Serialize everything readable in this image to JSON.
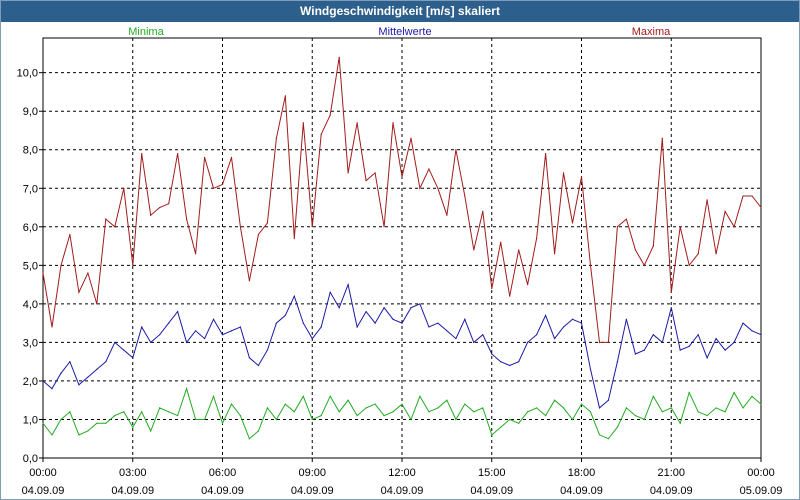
{
  "window": {
    "title": "Windgeschwindigkeit [m/s] skaliert"
  },
  "colors": {
    "minima": "#22aa22",
    "mean": "#1a1aa6",
    "maxima": "#a21c1c",
    "titlebar": "#2d5f8d",
    "grid": "#000000"
  },
  "chart_data": {
    "type": "line",
    "title": "Windgeschwindigkeit [m/s] skaliert",
    "xlabel": "",
    "ylabel": "",
    "ylim": [
      0,
      10.9
    ],
    "xlim": [
      0,
      24
    ],
    "x_unit": "hours since 04.09.09 00:00",
    "y_ticks": [
      "0,0",
      "1,0",
      "2,0",
      "3,0",
      "4,0",
      "5,0",
      "6,0",
      "7,0",
      "8,0",
      "9,0",
      "10,0"
    ],
    "x_ticks": [
      {
        "time": "00:00",
        "date": "04.09.09"
      },
      {
        "time": "03:00",
        "date": "04.09.09"
      },
      {
        "time": "06:00",
        "date": "04.09.09"
      },
      {
        "time": "09:00",
        "date": "04.09.09"
      },
      {
        "time": "12:00",
        "date": "04.09.09"
      },
      {
        "time": "15:00",
        "date": "04.09.09"
      },
      {
        "time": "18:00",
        "date": "04.09.09"
      },
      {
        "time": "21:00",
        "date": "04.09.09"
      },
      {
        "time": "00:00",
        "date": "05.09.09"
      }
    ],
    "grid": true,
    "legend": [
      "Minima",
      "Mittelwerte",
      "Maxima"
    ],
    "series": [
      {
        "name": "Minima",
        "color": "#22aa22",
        "x": [
          0,
          0.3,
          0.6,
          0.9,
          1.2,
          1.5,
          1.8,
          2.1,
          2.4,
          2.7,
          3.0,
          3.3,
          3.6,
          3.9,
          4.2,
          4.5,
          4.8,
          5.1,
          5.4,
          5.7,
          6.0,
          6.3,
          6.6,
          6.9,
          7.2,
          7.5,
          7.8,
          8.1,
          8.4,
          8.7,
          9.0,
          9.3,
          9.6,
          9.9,
          10.2,
          10.5,
          10.8,
          11.1,
          11.4,
          11.7,
          12.0,
          12.3,
          12.6,
          12.9,
          13.2,
          13.5,
          13.8,
          14.1,
          14.4,
          14.7,
          15.0,
          15.3,
          15.6,
          15.9,
          16.2,
          16.5,
          16.8,
          17.1,
          17.4,
          17.7,
          18.0,
          18.3,
          18.6,
          18.9,
          19.2,
          19.5,
          19.8,
          20.1,
          20.4,
          20.7,
          21.0,
          21.3,
          21.6,
          21.9,
          22.2,
          22.5,
          22.8,
          23.1,
          23.4,
          23.7,
          24.0
        ],
        "y": [
          0.9,
          0.6,
          1.0,
          1.2,
          0.6,
          0.7,
          0.9,
          0.9,
          1.1,
          1.2,
          0.8,
          1.2,
          0.7,
          1.3,
          1.2,
          1.1,
          1.8,
          1.0,
          1.0,
          1.6,
          0.9,
          1.4,
          1.1,
          0.5,
          0.7,
          1.3,
          1.0,
          1.4,
          1.2,
          1.6,
          1.0,
          1.1,
          1.6,
          1.2,
          1.5,
          1.1,
          1.3,
          1.4,
          1.1,
          1.2,
          1.4,
          1.0,
          1.6,
          1.2,
          1.3,
          1.5,
          1.0,
          1.4,
          1.2,
          1.3,
          0.6,
          0.8,
          1.0,
          0.9,
          1.2,
          1.3,
          1.1,
          1.5,
          1.3,
          1.0,
          1.4,
          1.2,
          0.6,
          0.5,
          0.8,
          1.3,
          1.1,
          1.0,
          1.6,
          1.2,
          1.3,
          0.9,
          1.7,
          1.2,
          1.1,
          1.3,
          1.2,
          1.7,
          1.3,
          1.6,
          1.4
        ]
      },
      {
        "name": "Mittelwerte",
        "color": "#1a1aa6",
        "x": [
          0,
          0.3,
          0.6,
          0.9,
          1.2,
          1.5,
          1.8,
          2.1,
          2.4,
          2.7,
          3.0,
          3.3,
          3.6,
          3.9,
          4.2,
          4.5,
          4.8,
          5.1,
          5.4,
          5.7,
          6.0,
          6.3,
          6.6,
          6.9,
          7.2,
          7.5,
          7.8,
          8.1,
          8.4,
          8.7,
          9.0,
          9.3,
          9.6,
          9.9,
          10.2,
          10.5,
          10.8,
          11.1,
          11.4,
          11.7,
          12.0,
          12.3,
          12.6,
          12.9,
          13.2,
          13.5,
          13.8,
          14.1,
          14.4,
          14.7,
          15.0,
          15.3,
          15.6,
          15.9,
          16.2,
          16.5,
          16.8,
          17.1,
          17.4,
          17.7,
          18.0,
          18.3,
          18.6,
          18.9,
          19.2,
          19.5,
          19.8,
          20.1,
          20.4,
          20.7,
          21.0,
          21.3,
          21.6,
          21.9,
          22.2,
          22.5,
          22.8,
          23.1,
          23.4,
          23.7,
          24.0
        ],
        "y": [
          2.0,
          1.8,
          2.2,
          2.5,
          1.9,
          2.1,
          2.3,
          2.5,
          3.0,
          2.8,
          2.6,
          3.4,
          3.0,
          3.2,
          3.5,
          3.8,
          3.0,
          3.3,
          3.1,
          3.6,
          3.2,
          3.3,
          3.4,
          2.6,
          2.4,
          2.8,
          3.5,
          3.7,
          4.2,
          3.5,
          3.1,
          3.4,
          4.3,
          3.9,
          4.5,
          3.4,
          3.8,
          3.5,
          3.9,
          3.6,
          3.5,
          3.9,
          4.0,
          3.4,
          3.5,
          3.3,
          3.1,
          3.6,
          3.0,
          3.2,
          2.7,
          2.5,
          2.4,
          2.5,
          3.0,
          3.2,
          3.7,
          3.1,
          3.4,
          3.6,
          3.5,
          2.3,
          1.3,
          1.5,
          2.5,
          3.6,
          2.7,
          2.8,
          3.2,
          3.0,
          3.9,
          2.8,
          2.9,
          3.2,
          2.6,
          3.1,
          2.8,
          3.0,
          3.5,
          3.3,
          3.2
        ]
      },
      {
        "name": "Maxima",
        "color": "#a21c1c",
        "x": [
          0,
          0.3,
          0.6,
          0.9,
          1.2,
          1.5,
          1.8,
          2.1,
          2.4,
          2.7,
          3.0,
          3.3,
          3.6,
          3.9,
          4.2,
          4.5,
          4.8,
          5.1,
          5.4,
          5.7,
          6.0,
          6.3,
          6.6,
          6.9,
          7.2,
          7.5,
          7.8,
          8.1,
          8.4,
          8.7,
          9.0,
          9.3,
          9.6,
          9.9,
          10.2,
          10.5,
          10.8,
          11.1,
          11.4,
          11.7,
          12.0,
          12.3,
          12.6,
          12.9,
          13.2,
          13.5,
          13.8,
          14.1,
          14.4,
          14.7,
          15.0,
          15.3,
          15.6,
          15.9,
          16.2,
          16.5,
          16.8,
          17.1,
          17.4,
          17.7,
          18.0,
          18.3,
          18.6,
          18.9,
          19.2,
          19.5,
          19.8,
          20.1,
          20.4,
          20.7,
          21.0,
          21.3,
          21.6,
          21.9,
          22.2,
          22.5,
          22.8,
          23.1,
          23.4,
          23.7,
          24.0
        ],
        "y": [
          4.8,
          3.4,
          5.0,
          5.8,
          4.3,
          4.8,
          4.0,
          6.2,
          6.0,
          7.0,
          5.0,
          7.9,
          6.3,
          6.5,
          6.6,
          7.9,
          6.2,
          5.3,
          7.8,
          7.0,
          7.1,
          7.8,
          6.0,
          4.6,
          5.8,
          6.1,
          8.3,
          9.4,
          5.7,
          8.7,
          6.0,
          8.4,
          8.9,
          10.4,
          7.4,
          8.7,
          7.2,
          7.4,
          6.0,
          8.7,
          7.3,
          8.3,
          7.0,
          7.5,
          7.0,
          6.3,
          8.0,
          6.8,
          5.4,
          6.4,
          4.4,
          5.6,
          4.2,
          5.4,
          4.5,
          5.7,
          7.9,
          5.3,
          7.4,
          6.1,
          7.3,
          5.0,
          3.0,
          3.0,
          6.0,
          6.2,
          5.4,
          5.0,
          5.5,
          8.3,
          4.3,
          6.0,
          5.0,
          5.3,
          6.7,
          5.3,
          6.4,
          6.0,
          6.8,
          6.8,
          6.5
        ]
      }
    ]
  }
}
